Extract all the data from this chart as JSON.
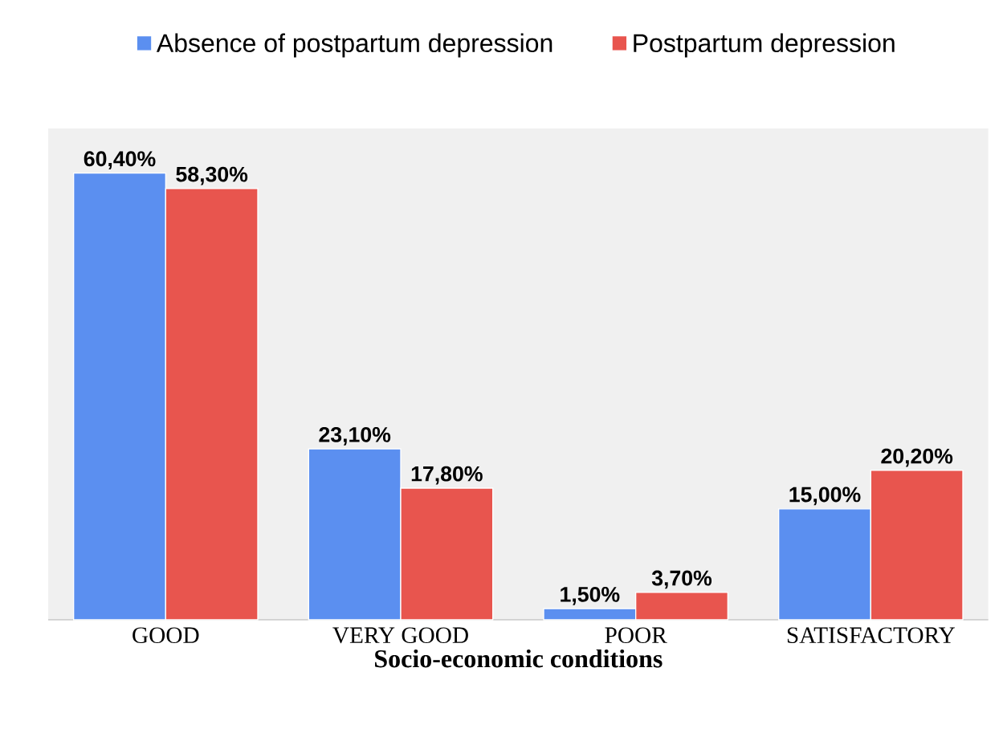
{
  "chart_data": {
    "type": "bar",
    "xlabel": "Socio-economic conditions",
    "categories": [
      "GOOD",
      "VERY GOOD",
      "POOR",
      "SATISFACTORY"
    ],
    "series": [
      {
        "name": "Absence of postpartum depression",
        "color": "#5b8ff0",
        "values": [
          60.4,
          23.1,
          1.5,
          15.0
        ],
        "value_labels": [
          "60,40%",
          "23,10%",
          "1,50%",
          "15,00%"
        ]
      },
      {
        "name": "Postpartum depression",
        "color": "#e8554e",
        "values": [
          58.3,
          17.8,
          3.7,
          20.2
        ],
        "value_labels": [
          "58,30%",
          "17,80%",
          "3,70%",
          "20,20%"
        ]
      }
    ],
    "legend": "top"
  }
}
